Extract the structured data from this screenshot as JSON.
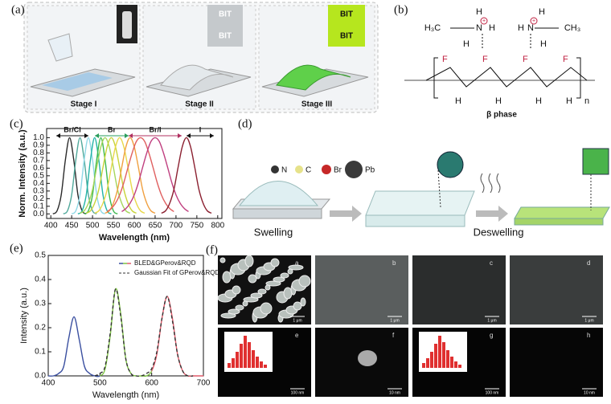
{
  "panel_labels": {
    "a": "(a)",
    "b": "(b)",
    "c": "(c)",
    "d": "(d)",
    "e": "(e)",
    "f": "(f)"
  },
  "stages": [
    "Stage I",
    "Stage II",
    "Stage III"
  ],
  "stage_text": "BIT",
  "molecule": {
    "h": "H",
    "n": "N",
    "f": "F",
    "methyl_left": "H₃C",
    "methyl_right": "CH₃",
    "charge": "+",
    "repeat": "n",
    "phase": "β phase"
  },
  "swelling": {
    "legend": [
      "N",
      "C",
      "Br",
      "Pb"
    ],
    "steps": [
      "Swelling",
      "Deswelling"
    ]
  },
  "micrographs": [
    {
      "label": "a",
      "scale": "1 μm"
    },
    {
      "label": "b",
      "scale": "1 μm"
    },
    {
      "label": "c",
      "scale": "1 μm"
    },
    {
      "label": "d",
      "scale": "1 μm"
    },
    {
      "label": "e",
      "scale": "100 nm"
    },
    {
      "label": "f",
      "scale": "10 nm"
    },
    {
      "label": "g",
      "scale": "100 nm"
    },
    {
      "label": "h",
      "scale": "10 nm"
    }
  ],
  "chart_data": [
    {
      "type": "line",
      "xlabel": "Wavelength (nm)",
      "ylabel": "Norm. Intensity (a.u.)",
      "annotations": [
        "Br/Cl",
        "Br",
        "Br/I",
        "I"
      ],
      "xlim": [
        390,
        810
      ],
      "ylim": [
        -0.06,
        1.12
      ],
      "xticks": [
        400,
        450,
        500,
        550,
        600,
        650,
        700,
        750,
        800
      ],
      "yticks": [
        {
          "value": 0,
          "label": "0.0"
        },
        0.1,
        0.2,
        0.3,
        0.4,
        0.5,
        0.6,
        0.7,
        0.8,
        0.9,
        {
          "value": 1,
          "label": "1.0"
        }
      ],
      "series": [
        {
          "color": "#2a2a2a",
          "x": [
            405,
            415,
            425,
            435,
            445,
            455,
            465,
            475,
            485
          ],
          "values": [
            0,
            0.04,
            0.25,
            0.71,
            1,
            0.71,
            0.25,
            0.04,
            0
          ]
        },
        {
          "color": "#4fa89a",
          "x": [
            430,
            440,
            450,
            460,
            470,
            480,
            490,
            500,
            510
          ],
          "values": [
            0,
            0.04,
            0.25,
            0.71,
            1,
            0.71,
            0.25,
            0.04,
            0
          ]
        },
        {
          "color": "#8fd8e6",
          "x": [
            450,
            460,
            470,
            480,
            490,
            500,
            510,
            520,
            530
          ],
          "values": [
            0,
            0.04,
            0.25,
            0.71,
            1,
            0.71,
            0.25,
            0.04,
            0
          ]
        },
        {
          "color": "#22b3a6",
          "x": [
            465,
            475,
            485,
            495,
            505,
            515,
            525,
            535,
            545
          ],
          "values": [
            0,
            0.04,
            0.25,
            0.71,
            1,
            0.71,
            0.25,
            0.04,
            0
          ]
        },
        {
          "color": "#3cb84c",
          "x": [
            480,
            490,
            500,
            510,
            520,
            530,
            540,
            550,
            560
          ],
          "values": [
            0,
            0.04,
            0.25,
            0.71,
            1,
            0.71,
            0.25,
            0.04,
            0
          ]
        },
        {
          "color": "#a6d65b",
          "x": [
            470,
            480,
            490,
            500,
            510,
            520,
            530,
            540,
            550,
            560,
            570,
            580,
            590
          ],
          "values": [
            0.01,
            0.04,
            0.14,
            0.32,
            0.61,
            0.88,
            1,
            0.88,
            0.61,
            0.32,
            0.14,
            0.04,
            0.01
          ]
        },
        {
          "color": "#c8d43a",
          "x": [
            485,
            495,
            505,
            515,
            525,
            535,
            545,
            555,
            565,
            575,
            585,
            595,
            605
          ],
          "values": [
            0.01,
            0.04,
            0.14,
            0.32,
            0.61,
            0.88,
            1,
            0.88,
            0.61,
            0.32,
            0.14,
            0.04,
            0.01
          ]
        },
        {
          "color": "#e8d84a",
          "x": [
            505,
            515,
            525,
            535,
            545,
            555,
            565,
            575,
            585,
            595,
            605,
            615,
            625
          ],
          "values": [
            0.01,
            0.04,
            0.14,
            0.32,
            0.61,
            0.88,
            1,
            0.88,
            0.61,
            0.32,
            0.14,
            0.04,
            0.01
          ]
        },
        {
          "color": "#f0a040",
          "x": [
            530,
            540,
            550,
            560,
            570,
            580,
            590,
            600,
            610,
            620,
            630,
            640,
            650
          ],
          "values": [
            0.01,
            0.04,
            0.14,
            0.32,
            0.61,
            0.88,
            1,
            0.88,
            0.61,
            0.32,
            0.14,
            0.04,
            0.01
          ]
        },
        {
          "color": "#e06060",
          "x": [
            535,
            545,
            555,
            565,
            575,
            585,
            595,
            605,
            615,
            625,
            635,
            645,
            655,
            665,
            675,
            685,
            695
          ],
          "values": [
            0.03,
            0.07,
            0.14,
            0.25,
            0.41,
            0.61,
            0.8,
            0.95,
            1,
            0.95,
            0.8,
            0.61,
            0.41,
            0.25,
            0.14,
            0.07,
            0.03
          ]
        },
        {
          "color": "#c04080",
          "x": [
            570,
            580,
            590,
            600,
            610,
            620,
            630,
            640,
            650,
            660,
            670,
            680,
            690,
            700,
            710,
            720,
            730
          ],
          "values": [
            0.03,
            0.07,
            0.14,
            0.25,
            0.41,
            0.61,
            0.8,
            0.95,
            1,
            0.95,
            0.8,
            0.61,
            0.41,
            0.25,
            0.14,
            0.07,
            0.03
          ]
        },
        {
          "color": "#8b2030",
          "x": [
            665,
            675,
            685,
            695,
            705,
            715,
            725,
            735,
            745,
            755,
            765,
            775,
            785
          ],
          "values": [
            0.01,
            0.04,
            0.14,
            0.32,
            0.61,
            0.88,
            1,
            0.88,
            0.61,
            0.32,
            0.14,
            0.04,
            0.01
          ]
        }
      ]
    },
    {
      "type": "line",
      "xlabel": "Wavelength (nm)",
      "ylabel": "Intensity (a.u.)",
      "legend": "upper right",
      "xlim": [
        400,
        700
      ],
      "ylim": [
        0,
        0.5
      ],
      "xticks": [
        400,
        500,
        600,
        700
      ],
      "yticks": [
        {
          "value": 0,
          "label": "0.0"
        },
        0.1,
        0.2,
        0.3,
        0.4,
        0.5
      ],
      "series": [
        {
          "name": "BLED&GPerov&RQD",
          "colors": [
            "#3a4fa0",
            "#7cc242",
            "#e05a6a"
          ],
          "x": [
            400,
            410,
            420,
            430,
            440,
            450,
            460,
            470,
            480,
            490,
            500,
            510,
            520,
            530,
            540,
            550,
            560,
            570,
            580,
            590,
            600,
            610,
            620,
            630,
            640,
            650,
            660,
            670,
            680,
            690,
            700
          ],
          "values": [
            0,
            0,
            0.01,
            0.04,
            0.16,
            0.245,
            0.15,
            0.04,
            0.01,
            0,
            0,
            0.03,
            0.17,
            0.36,
            0.26,
            0.07,
            0.01,
            0,
            0,
            0,
            0.02,
            0.09,
            0.24,
            0.33,
            0.24,
            0.09,
            0.02,
            0,
            0,
            0,
            0
          ]
        },
        {
          "name": "Gaussian Fit of GPerov&RQD",
          "color": "#333333",
          "dash": true,
          "x": [
            490,
            500,
            510,
            520,
            530,
            540,
            550,
            560,
            570,
            580,
            590,
            600,
            610,
            620,
            630,
            640,
            650,
            660,
            670,
            680
          ],
          "values": [
            0,
            0.01,
            0.04,
            0.18,
            0.36,
            0.25,
            0.07,
            0.01,
            0,
            0,
            0.01,
            0.03,
            0.1,
            0.24,
            0.33,
            0.23,
            0.09,
            0.02,
            0,
            0
          ]
        }
      ]
    }
  ]
}
